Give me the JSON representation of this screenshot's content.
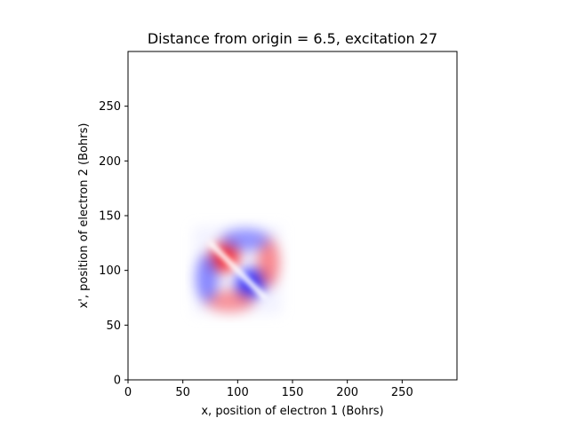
{
  "chart_data": {
    "type": "heatmap",
    "title": "Distance from origin = 6.5, excitation 27",
    "xlabel": "x, position of electron 1 (Bohrs)",
    "ylabel": "x', position of electron 2 (Bohrs)",
    "xlim": [
      0,
      300
    ],
    "ylim": [
      0,
      300
    ],
    "xticks": [
      0,
      50,
      100,
      150,
      200,
      250
    ],
    "yticks": [
      0,
      50,
      100,
      150,
      200,
      250
    ],
    "grid": false,
    "colormap": "bwr",
    "colors": {
      "negative": "#0000ff",
      "zero": "#ffffff",
      "positive": "#ff0000"
    },
    "features": [
      {
        "kind": "lobe",
        "sign": "positive",
        "x": 88,
        "y": 112,
        "intensity": 0.75
      },
      {
        "kind": "lobe",
        "sign": "negative",
        "x": 112,
        "y": 88,
        "intensity": 0.75
      },
      {
        "kind": "lobe",
        "sign": "positive",
        "x": 128,
        "y": 107,
        "intensity": 0.45
      },
      {
        "kind": "lobe",
        "sign": "positive",
        "x": 93,
        "y": 72,
        "intensity": 0.4
      },
      {
        "kind": "lobe",
        "sign": "negative",
        "x": 72,
        "y": 93,
        "intensity": 0.45
      },
      {
        "kind": "lobe",
        "sign": "negative",
        "x": 107,
        "y": 128,
        "intensity": 0.4
      }
    ],
    "nodal_line": {
      "from": [
        75,
        125
      ],
      "to": [
        125,
        75
      ]
    }
  }
}
